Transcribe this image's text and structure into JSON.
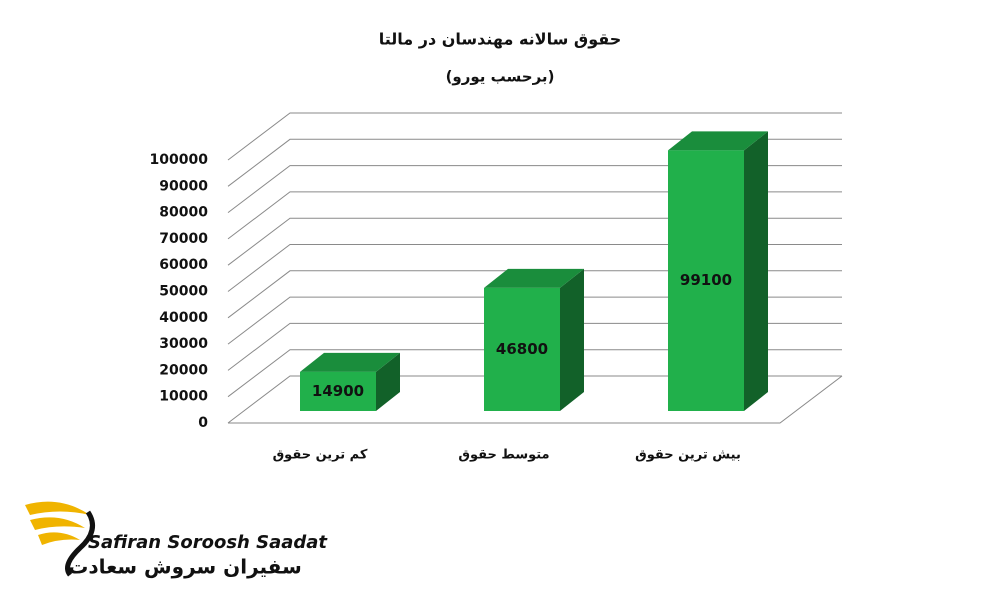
{
  "chart_data": {
    "type": "bar3d",
    "title": "حقوق سالانه مهندسان در مالتا",
    "subtitle": "(برحسب یورو)",
    "categories": [
      "کم ترین حقوق",
      "متوسط حقوق",
      "بیش ترین حقوق"
    ],
    "values": [
      14900,
      46800,
      99100
    ],
    "color": "#21b04b",
    "ylim": [
      0,
      100000
    ],
    "yticks": [
      0,
      10000,
      20000,
      30000,
      40000,
      50000,
      60000,
      70000,
      80000,
      90000,
      100000
    ],
    "grid": true
  },
  "logo": {
    "latin": "Safiran Soroosh Saadat",
    "persian": "سفیران سروش سعادت"
  }
}
